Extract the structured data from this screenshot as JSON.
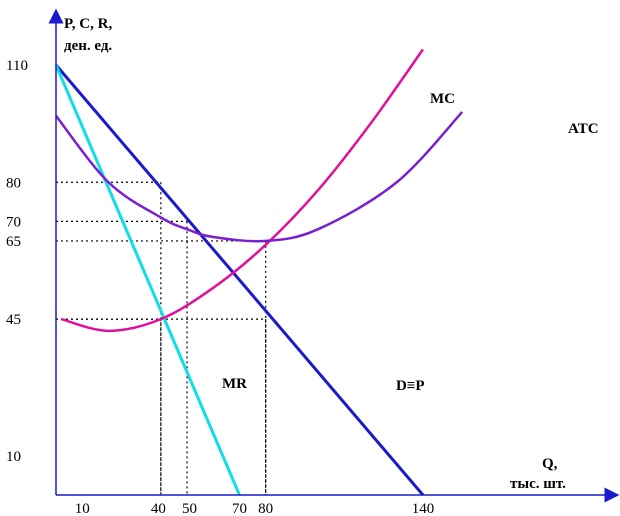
{
  "chart_data": {
    "type": "line",
    "ylabel_lines": [
      "P, C, R,",
      "ден. ед."
    ],
    "xlabel_lines": [
      "Q,",
      "тыс. шт."
    ],
    "xlim": [
      0,
      160
    ],
    "ylim": [
      0,
      115
    ],
    "x_ticks": [
      "10",
      "40",
      "50",
      "70",
      "80",
      "140"
    ],
    "y_ticks": [
      "110",
      "80",
      "70",
      "65",
      "45",
      "10"
    ],
    "series": [
      {
        "name": "D≡P",
        "color": "#1a1acc",
        "x": [
          0,
          140
        ],
        "y": [
          110,
          0
        ]
      },
      {
        "name": "MR",
        "color": "#11dde6",
        "x": [
          0,
          70
        ],
        "y": [
          110,
          0
        ]
      },
      {
        "name": "MC",
        "color": "#e0109a",
        "x": [
          2,
          20,
          40,
          60,
          80,
          100,
          120,
          140
        ],
        "y": [
          45,
          42,
          45,
          53,
          64,
          78,
          95,
          114
        ]
      },
      {
        "name": "ATC",
        "color": "#7a1fd0",
        "x": [
          0,
          20,
          40,
          50,
          60,
          80,
          100,
          130,
          155
        ],
        "y": [
          97,
          80,
          71,
          68,
          66,
          65,
          68,
          80,
          98
        ]
      }
    ],
    "guides": [
      {
        "x": 40,
        "y": 80
      },
      {
        "x": 50,
        "y": 70
      },
      {
        "x": 80,
        "y": 65
      },
      {
        "x": 80,
        "y": 45
      },
      {
        "x": 40,
        "y": 45
      }
    ]
  }
}
